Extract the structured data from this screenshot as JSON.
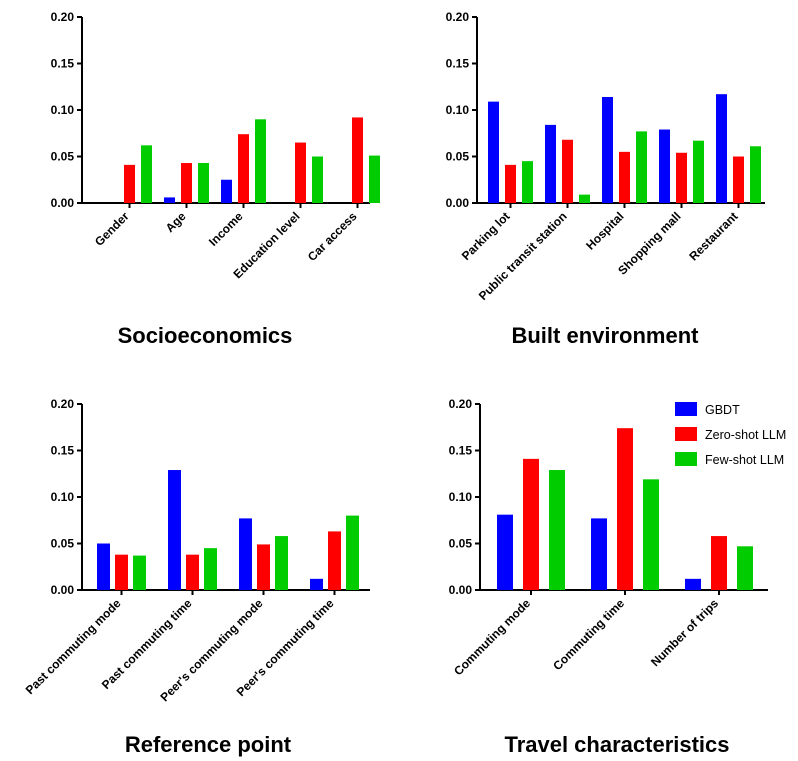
{
  "colors": {
    "gbdt": "#0000ff",
    "zero_shot": "#ff0000",
    "few_shot": "#00cc00",
    "axis": "#000000"
  },
  "legend": {
    "placement": "top-right of Travel characteristics panel",
    "items": [
      "GBDT",
      "Zero-shot LLM",
      "Few-shot LLM"
    ]
  },
  "chart_data": [
    {
      "type": "bar",
      "title": "Socioeconomics",
      "xlabel": "",
      "ylabel": "",
      "ylim": [
        0,
        0.2
      ],
      "yticks": [
        "0.00",
        "0.05",
        "0.10",
        "0.15",
        "0.20"
      ],
      "grid": false,
      "categories": [
        "Gender",
        "Age",
        "Income",
        "Education level",
        "Car access"
      ],
      "series": [
        {
          "name": "GBDT",
          "values": [
            0,
            0.006,
            0.025,
            0,
            0
          ]
        },
        {
          "name": "Zero-shot LLM",
          "values": [
            0.041,
            0.043,
            0.074,
            0.065,
            0.092
          ]
        },
        {
          "name": "Few-shot LLM",
          "values": [
            0.062,
            0.043,
            0.09,
            0.05,
            0.051
          ]
        }
      ]
    },
    {
      "type": "bar",
      "title": "Built environment",
      "xlabel": "",
      "ylabel": "",
      "ylim": [
        0,
        0.2
      ],
      "yticks": [
        "0.00",
        "0.05",
        "0.10",
        "0.15",
        "0.20"
      ],
      "grid": false,
      "categories": [
        "Parking lot",
        "Public transit station",
        "Hospital",
        "Shopping mall",
        "Restaurant"
      ],
      "series": [
        {
          "name": "GBDT",
          "values": [
            0.109,
            0.084,
            0.114,
            0.079,
            0.117
          ]
        },
        {
          "name": "Zero-shot LLM",
          "values": [
            0.041,
            0.068,
            0.055,
            0.054,
            0.05
          ]
        },
        {
          "name": "Few-shot LLM",
          "values": [
            0.045,
            0.009,
            0.077,
            0.067,
            0.061
          ]
        }
      ]
    },
    {
      "type": "bar",
      "title": "Reference point",
      "xlabel": "",
      "ylabel": "",
      "ylim": [
        0,
        0.2
      ],
      "yticks": [
        "0.00",
        "0.05",
        "0.10",
        "0.15",
        "0.20"
      ],
      "grid": false,
      "categories": [
        "Past commuting mode",
        "Past commuting time",
        "Peer's commuting mode",
        "Peer's commuting time"
      ],
      "series": [
        {
          "name": "GBDT",
          "values": [
            0.05,
            0.129,
            0.077,
            0.012
          ]
        },
        {
          "name": "Zero-shot LLM",
          "values": [
            0.038,
            0.038,
            0.049,
            0.063
          ]
        },
        {
          "name": "Few-shot LLM",
          "values": [
            0.037,
            0.045,
            0.058,
            0.08
          ]
        }
      ]
    },
    {
      "type": "bar",
      "title": "Travel characteristics",
      "xlabel": "",
      "ylabel": "",
      "ylim": [
        0,
        0.2
      ],
      "yticks": [
        "0.00",
        "0.05",
        "0.10",
        "0.15",
        "0.20"
      ],
      "grid": false,
      "categories": [
        "Commuting mode",
        "Commuting time",
        "Number of trips"
      ],
      "series": [
        {
          "name": "GBDT",
          "values": [
            0.081,
            0.077,
            0.012
          ]
        },
        {
          "name": "Zero-shot LLM",
          "values": [
            0.141,
            0.174,
            0.058
          ]
        },
        {
          "name": "Few-shot LLM",
          "values": [
            0.129,
            0.119,
            0.047
          ]
        }
      ]
    }
  ]
}
